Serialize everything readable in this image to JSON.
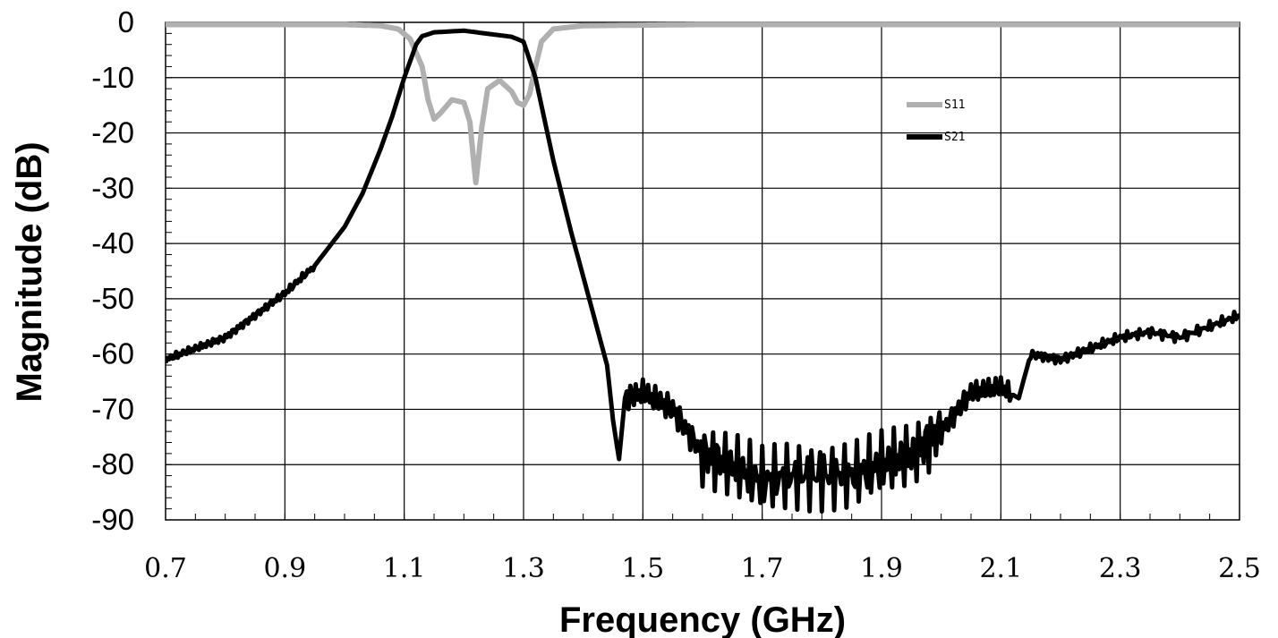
{
  "chart_data": {
    "type": "line",
    "xlabel": "Frequency  (GHz)",
    "ylabel": "Magnitude (dB)",
    "xlim": [
      0.7,
      2.5
    ],
    "ylim": [
      -90,
      0
    ],
    "x_ticks": [
      "0.7",
      "0.9",
      "1.1",
      "1.3",
      "1.5",
      "1.7",
      "1.9",
      "2.1",
      "2.3",
      "2.5"
    ],
    "y_ticks": [
      "0",
      "-10",
      "-20",
      "-30",
      "-40",
      "-50",
      "-60",
      "-70",
      "-80",
      "-90"
    ],
    "grid": true,
    "legend_position": "upper-right",
    "series": [
      {
        "name": "S11",
        "color": "#b0b0b0",
        "x": [
          0.7,
          1.0,
          1.06,
          1.09,
          1.11,
          1.13,
          1.14,
          1.15,
          1.16,
          1.18,
          1.2,
          1.21,
          1.22,
          1.23,
          1.24,
          1.26,
          1.28,
          1.29,
          1.3,
          1.31,
          1.32,
          1.33,
          1.35,
          1.4,
          1.6,
          2.5
        ],
        "y": [
          -0.4,
          -0.4,
          -0.6,
          -1.2,
          -3.0,
          -8.0,
          -14.0,
          -17.5,
          -16.5,
          -14.0,
          -14.5,
          -18.0,
          -29.0,
          -19.0,
          -12.0,
          -10.5,
          -12.5,
          -14.5,
          -15.0,
          -13.0,
          -8.0,
          -3.5,
          -1.2,
          -0.6,
          -0.4,
          -0.4
        ]
      },
      {
        "name": "S21",
        "color": "#000000",
        "x": [
          0.7,
          0.75,
          0.8,
          0.85,
          0.9,
          0.95,
          1.0,
          1.03,
          1.06,
          1.08,
          1.1,
          1.12,
          1.13,
          1.15,
          1.2,
          1.25,
          1.28,
          1.3,
          1.32,
          1.35,
          1.38,
          1.4,
          1.42,
          1.44,
          1.45,
          1.46,
          1.47,
          1.5,
          1.55,
          1.6,
          1.65,
          1.7,
          1.75,
          1.8,
          1.85,
          1.9,
          1.95,
          2.0,
          2.05,
          2.1,
          2.13,
          2.15,
          2.2,
          2.25,
          2.3,
          2.35,
          2.4,
          2.45,
          2.5
        ],
        "y": [
          -61,
          -59,
          -57,
          -53,
          -49,
          -44,
          -37,
          -31,
          -23,
          -17,
          -10,
          -4,
          -2.5,
          -1.8,
          -1.5,
          -2.2,
          -2.6,
          -3.5,
          -10,
          -25,
          -38,
          -46,
          -54,
          -62,
          -72,
          -79,
          -68,
          -67,
          -70,
          -78,
          -80,
          -83,
          -82,
          -82,
          -82,
          -80,
          -78,
          -74,
          -67,
          -66,
          -68,
          -60,
          -61,
          -59,
          -57,
          -56,
          -57,
          -55,
          -53
        ]
      }
    ]
  }
}
